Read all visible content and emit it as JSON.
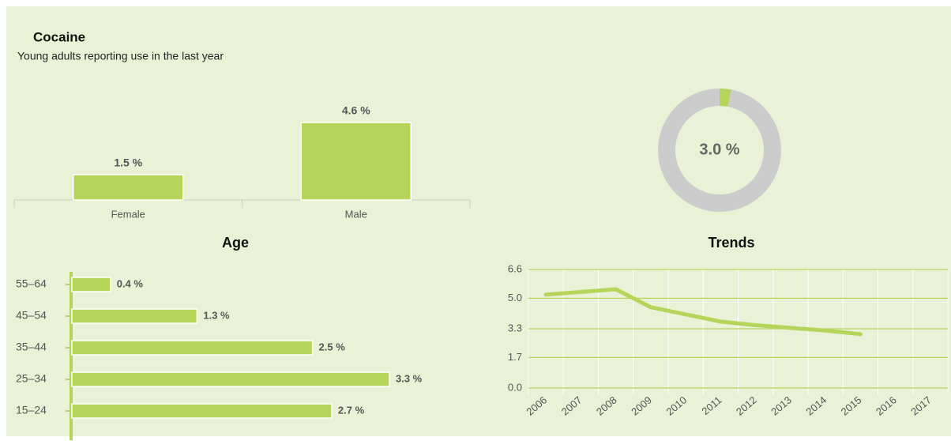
{
  "header": {
    "title": "Cocaine",
    "subtitle": "Young adults reporting use in the last year"
  },
  "chart_data": [
    {
      "type": "bar",
      "categories": [
        "Female",
        "Male"
      ],
      "values": [
        1.5,
        4.6
      ],
      "value_labels": [
        "1.5 %",
        "4.6 %"
      ],
      "color": "#b5d55a"
    },
    {
      "type": "donut",
      "values": [
        3.0
      ],
      "value_labels": [
        "3.0 %"
      ],
      "color": "#b5d55a",
      "track_color": "#cccccc"
    },
    {
      "type": "hbar",
      "title": "Age",
      "categories": [
        "55–64",
        "45–54",
        "35–44",
        "25–34",
        "15–24"
      ],
      "values": [
        0.4,
        1.3,
        2.5,
        3.3,
        2.7
      ],
      "value_labels": [
        "0.4 %",
        "1.3 %",
        "2.5 %",
        "3.3 %",
        "2.7 %"
      ],
      "color": "#b5d55a"
    },
    {
      "type": "line",
      "title": "Trends",
      "categories": [
        "2006",
        "2007",
        "2008",
        "2009",
        "2010",
        "2011",
        "2012",
        "2013",
        "2014",
        "2015",
        "2016",
        "2017"
      ],
      "values": [
        5.2,
        5.35,
        5.5,
        4.5,
        4.1,
        3.7,
        3.5,
        3.35,
        3.2,
        3.0,
        null,
        null
      ],
      "color": "#b5d55a",
      "ylim": [
        0,
        6.6
      ],
      "yticks": [
        {
          "value": 0,
          "label": "0.0"
        },
        1.7,
        3.3,
        {
          "value": 5,
          "label": "5.0"
        },
        6.6
      ],
      "grid": true
    }
  ]
}
